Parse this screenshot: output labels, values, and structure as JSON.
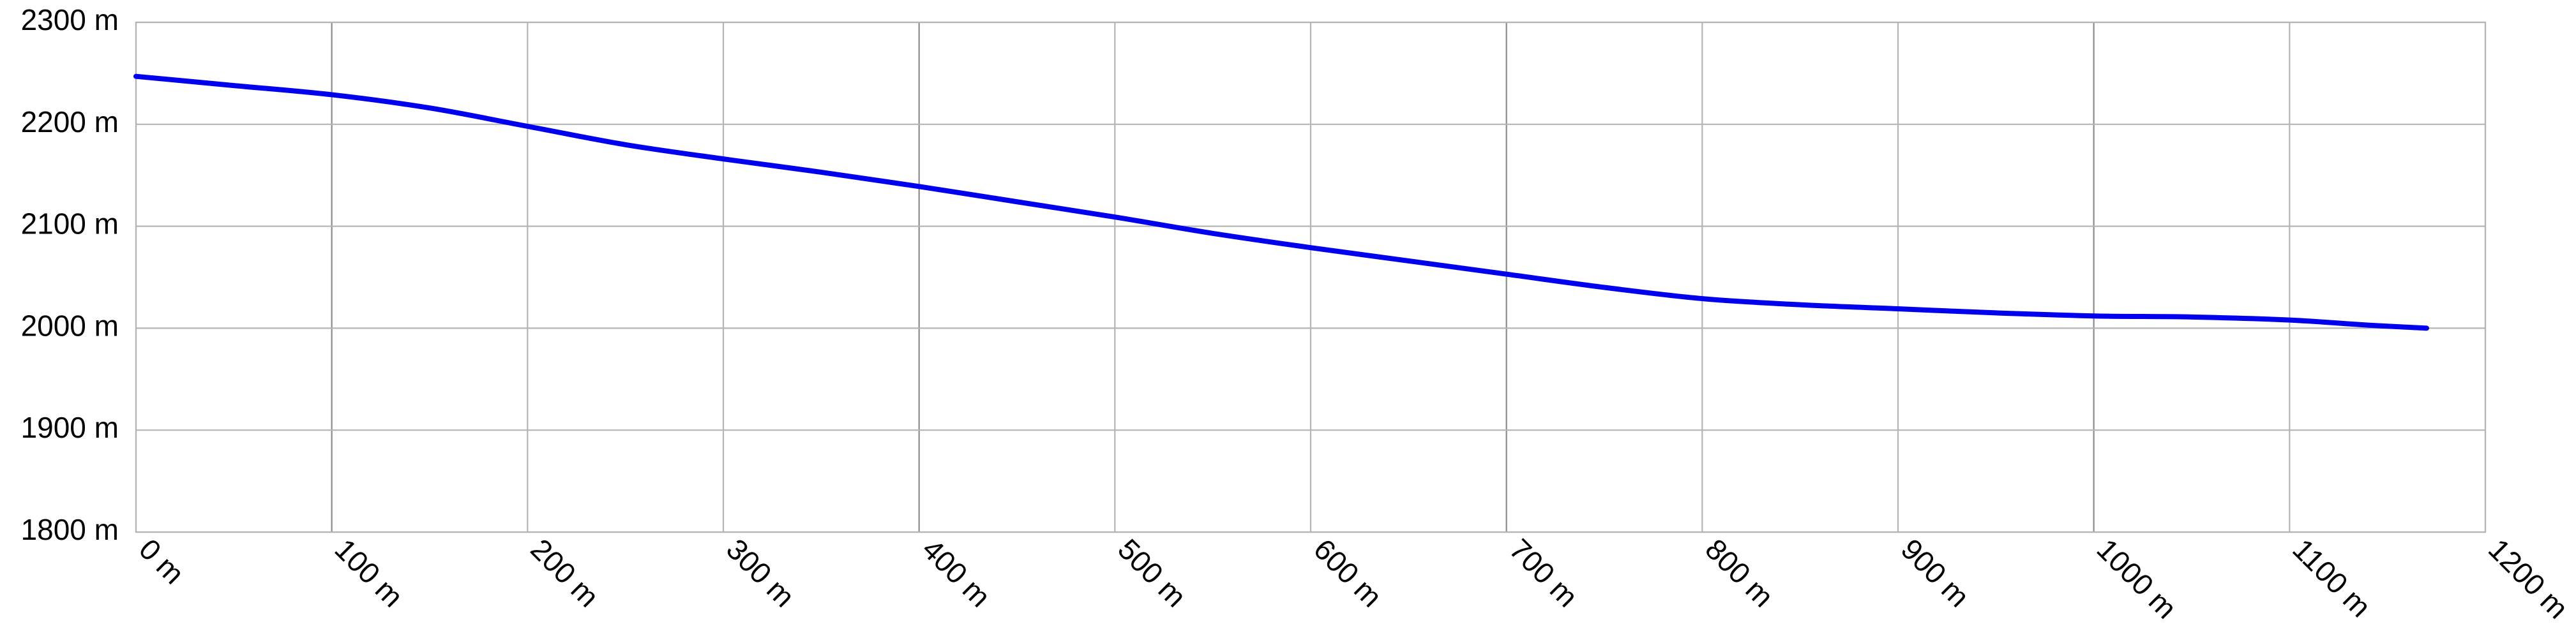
{
  "chart_data": {
    "type": "line",
    "title": "",
    "xlabel": "",
    "ylabel": "",
    "x_unit": "m",
    "y_unit": "m",
    "xlim": [
      0,
      1200
    ],
    "ylim": [
      1800,
      2300
    ],
    "x_ticks": [
      0,
      100,
      200,
      300,
      400,
      500,
      600,
      700,
      800,
      900,
      1000,
      1100,
      1200
    ],
    "y_ticks": [
      1800,
      1900,
      2000,
      2100,
      2200,
      2300
    ],
    "x_tick_labels": [
      "0 m",
      "100 m",
      "200 m",
      "300 m",
      "400 m",
      "500 m",
      "600 m",
      "700 m",
      "800 m",
      "900 m",
      "1000 m",
      "1100 m",
      "1200 m"
    ],
    "y_tick_labels": [
      "1800 m",
      "1900 m",
      "2000 m",
      "2100 m",
      "2200 m",
      "2300 m"
    ],
    "grid": true,
    "legend": "none",
    "line_color": "#0000ee",
    "series": [
      {
        "x": [
          0,
          50,
          100,
          150,
          200,
          250,
          300,
          350,
          400,
          450,
          500,
          550,
          600,
          650,
          700,
          750,
          800,
          850,
          900,
          950,
          1000,
          1050,
          1100,
          1140,
          1170
        ],
        "values": [
          2247,
          2238,
          2229,
          2216,
          2198,
          2180,
          2166,
          2153,
          2139,
          2124,
          2109,
          2093,
          2079,
          2066,
          2053,
          2040,
          2029,
          2023,
          2019,
          2015,
          2012,
          2011,
          2008,
          2003,
          2000
        ]
      }
    ]
  }
}
